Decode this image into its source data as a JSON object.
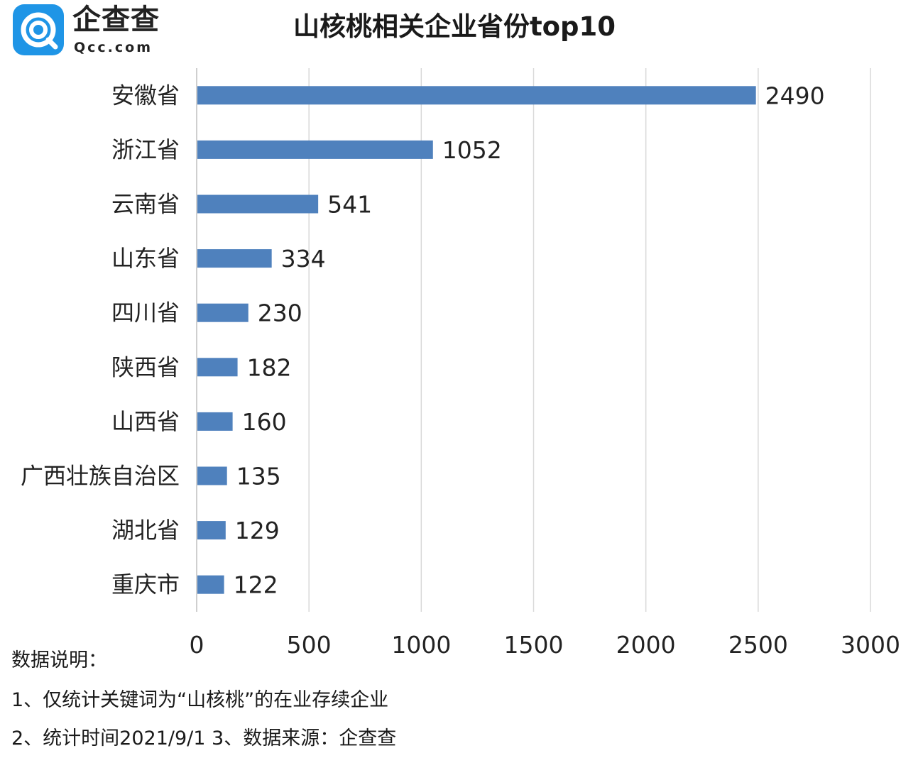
{
  "logo": {
    "name": "企查查",
    "domain": "Qcc.com",
    "badge_color": "#1f95e6"
  },
  "chart_data": {
    "type": "bar",
    "orientation": "horizontal",
    "title": "山核桃相关企业省份top10",
    "xlabel": "",
    "ylabel": "",
    "categories": [
      "安徽省",
      "浙江省",
      "云南省",
      "山东省",
      "四川省",
      "陕西省",
      "山西省",
      "广西壮族自治区",
      "湖北省",
      "重庆市"
    ],
    "values": [
      2490,
      1052,
      541,
      334,
      230,
      182,
      160,
      135,
      129,
      122
    ],
    "xlim": [
      0,
      3000
    ],
    "xticks": [
      0,
      500,
      1000,
      1500,
      2000,
      2500,
      3000
    ],
    "grid": true,
    "legend": "none",
    "bar_color": "#4f81bd",
    "grid_color": "#d9d9d9",
    "data_labels": true
  },
  "notes": {
    "heading": "数据说明：",
    "line1": "1、仅统计关键词为“山核桃”的在业存续企业",
    "line2": "2、统计时间2021/9/1   3、数据来源：企查查"
  }
}
